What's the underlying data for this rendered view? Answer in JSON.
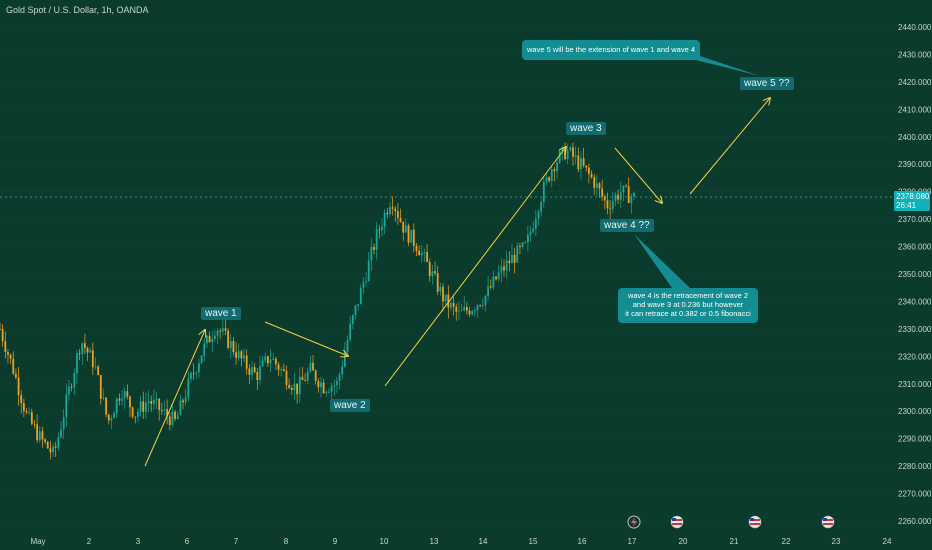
{
  "header": {
    "symbol": "Gold Spot / U.S. Dollar, 1h, OANDA"
  },
  "last_price": {
    "value": "2378.080",
    "countdown": "26:41"
  },
  "colors": {
    "background": "#0b3b2c",
    "up": "#1aa79a",
    "down": "#f0a020",
    "annotation": "#f2d240",
    "callout": "#138d92",
    "wave_label": "#136b70",
    "price_tag": "#0fb0b8"
  },
  "icons": [
    "flash-icon",
    "us-flag-icon",
    "us-flag-icon",
    "us-flag-icon"
  ],
  "wave_labels": [
    {
      "id": "wave-1",
      "text": "wave 1"
    },
    {
      "id": "wave-2",
      "text": "wave 2"
    },
    {
      "id": "wave-3",
      "text": "wave 3"
    },
    {
      "id": "wave-4",
      "text": "wave 4 ??"
    },
    {
      "id": "wave-5",
      "text": "wave 5 ??"
    }
  ],
  "callouts": [
    {
      "id": "wave5-note",
      "lines": [
        "wave 5 will be the extension of wave 1 and wave 4"
      ]
    },
    {
      "id": "wave4-note",
      "lines": [
        "wave 4 is the retracement of wave 2",
        "and wave 3 at 0.236 but however",
        "it can retrace at 0.382 or 0.5 fibonacci"
      ]
    }
  ],
  "chart_data": {
    "type": "candlestick",
    "title": "Gold Spot / U.S. Dollar, 1h, OANDA",
    "x_tick_labels": [
      "May",
      "2",
      "3",
      "6",
      "7",
      "8",
      "9",
      "10",
      "13",
      "14",
      "15",
      "16",
      "17",
      "20",
      "21",
      "22",
      "23",
      "24"
    ],
    "y_tick_labels": [
      "2440.000",
      "2430.000",
      "2420.000",
      "2410.000",
      "2400.000",
      "2390.000",
      "2380.000",
      "2370.000",
      "2360.000",
      "2350.000",
      "2340.000",
      "2330.000",
      "2320.000",
      "2310.000",
      "2300.000",
      "2290.000",
      "2280.000",
      "2270.000",
      "2260.000"
    ],
    "ylim": [
      2260,
      2440
    ],
    "current_price": 2378.08,
    "price_path": [
      {
        "date": "May 1",
        "close": 2330
      },
      {
        "date": "May 1",
        "close": 2315
      },
      {
        "date": "May 1",
        "close": 2298
      },
      {
        "date": "May 1",
        "close": 2290
      },
      {
        "date": "May 1",
        "close": 2284
      },
      {
        "date": "May 2",
        "close": 2305
      },
      {
        "date": "May 2",
        "close": 2326
      },
      {
        "date": "May 2",
        "close": 2317
      },
      {
        "date": "May 2",
        "close": 2296
      },
      {
        "date": "May 3",
        "close": 2308
      },
      {
        "date": "May 3",
        "close": 2299
      },
      {
        "date": "May 3",
        "close": 2304
      },
      {
        "date": "May 3",
        "close": 2300
      },
      {
        "date": "May 6",
        "close": 2296
      },
      {
        "date": "May 6",
        "close": 2310
      },
      {
        "date": "May 6",
        "close": 2322
      },
      {
        "date": "May 6",
        "close": 2331
      },
      {
        "date": "May 7",
        "close": 2325
      },
      {
        "date": "May 7",
        "close": 2318
      },
      {
        "date": "May 7",
        "close": 2313
      },
      {
        "date": "May 7",
        "close": 2320
      },
      {
        "date": "May 8",
        "close": 2314
      },
      {
        "date": "May 8",
        "close": 2308
      },
      {
        "date": "May 8",
        "close": 2315
      },
      {
        "date": "May 9",
        "close": 2309
      },
      {
        "date": "May 9",
        "close": 2310
      },
      {
        "date": "May 9",
        "close": 2331
      },
      {
        "date": "May 9",
        "close": 2348
      },
      {
        "date": "May 10",
        "close": 2365
      },
      {
        "date": "May 10",
        "close": 2378
      },
      {
        "date": "May 10",
        "close": 2366
      },
      {
        "date": "May 10",
        "close": 2360
      },
      {
        "date": "May 13",
        "close": 2350
      },
      {
        "date": "May 13",
        "close": 2340
      },
      {
        "date": "May 13",
        "close": 2335
      },
      {
        "date": "May 14",
        "close": 2338
      },
      {
        "date": "May 14",
        "close": 2342
      },
      {
        "date": "May 14",
        "close": 2350
      },
      {
        "date": "May 15",
        "close": 2356
      },
      {
        "date": "May 15",
        "close": 2360
      },
      {
        "date": "May 15",
        "close": 2377
      },
      {
        "date": "May 15",
        "close": 2390
      },
      {
        "date": "May 16",
        "close": 2395
      },
      {
        "date": "May 16",
        "close": 2390
      },
      {
        "date": "May 16",
        "close": 2384
      },
      {
        "date": "May 16",
        "close": 2375
      },
      {
        "date": "May 17",
        "close": 2380
      },
      {
        "date": "May 17",
        "close": 2378
      }
    ]
  }
}
